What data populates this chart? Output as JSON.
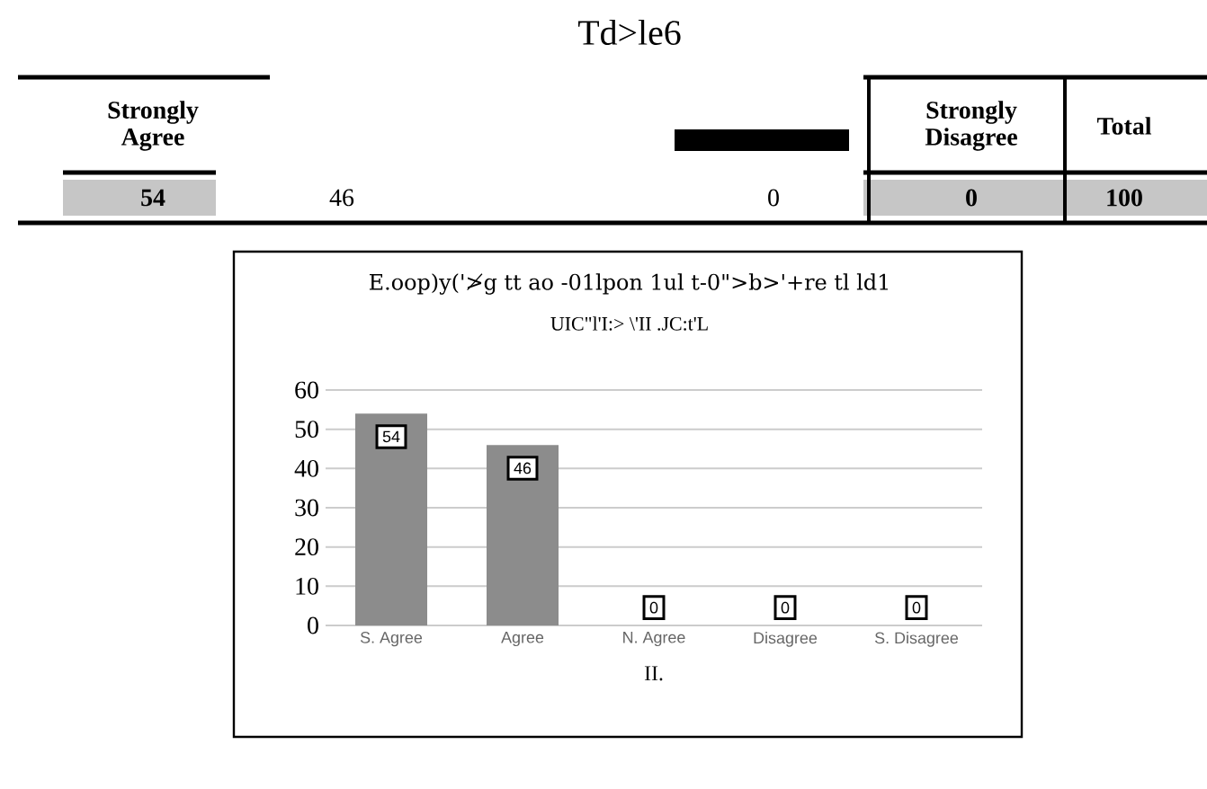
{
  "chart_data": {
    "type": "bar",
    "title": "E.oop)y('≯g tt ao -01lpon 1ul t-0\">b>'+re tl ld1",
    "subtitle": "UIC\"l'I:> \\'II .JC:t'L",
    "xlabel": "II.",
    "categories": [
      "S. Agree",
      "Agree",
      "N. Agree",
      "Disagree",
      "S. Disagree"
    ],
    "values": [
      54,
      46,
      0,
      0,
      0
    ],
    "color": "#8c8c8c",
    "ylim": [
      0,
      60
    ],
    "yticks": [
      0,
      10,
      20,
      30,
      40,
      50,
      60
    ],
    "grid": "y",
    "data_labels": true,
    "annotations": [
      "Td>le6",
      "Strongly Agree",
      "Strongly Disagree",
      "Total",
      "54",
      "46",
      "0",
      "0",
      "100"
    ]
  }
}
